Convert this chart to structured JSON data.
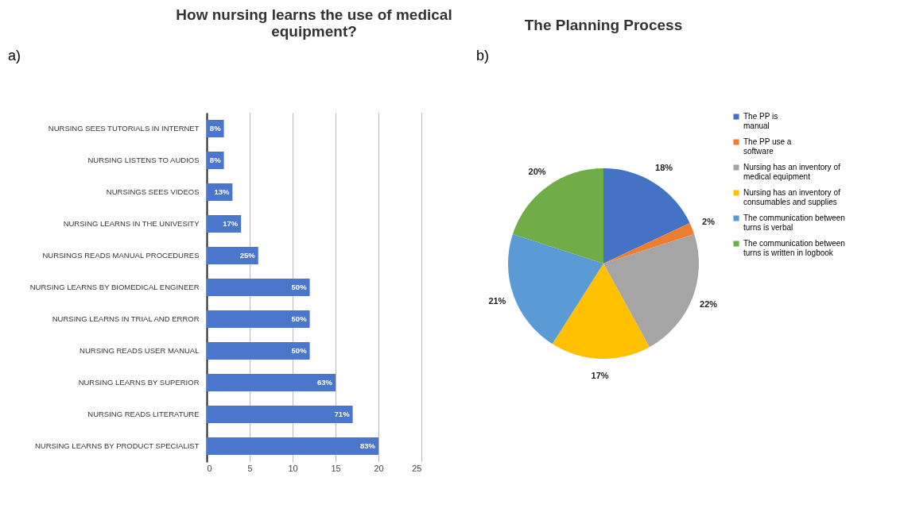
{
  "chart_data": [
    {
      "type": "bar",
      "orientation": "horizontal",
      "title": "How nursing learns the use of medical equipment?",
      "categories": [
        "NURSING SEES TUTORIALS IN INTERNET",
        "NURSING LISTENS TO AUDIOS",
        "NURSINGS SEES VIDEOS",
        "NURSING LEARNS IN THE UNIVESITY",
        "NURSINGS READS MANUAL PROCEDURES",
        "NURSING LEARNS BY BIOMEDICAL ENGINEER",
        "NURSING LEARNS IN TRIAL AND ERROR",
        "NURSING  READS USER MANUAL",
        "NURSING LEARNS BY SUPERIOR",
        "NURSING READS LITERATURE",
        "NURSING LEARNS BY PRODUCT SPECIALIST"
      ],
      "values": [
        2,
        2,
        3,
        4,
        6,
        12,
        12,
        12,
        15,
        17,
        20
      ],
      "color": "#4a76cc",
      "xlim": [
        0,
        25
      ],
      "xticks": [
        0,
        5,
        10,
        15,
        20,
        25
      ],
      "grid": "x",
      "annotations": [
        "a)",
        {
          "text": "8%",
          "x": 2,
          "y": "NURSING SEES TUTORIALS IN INTERNET"
        },
        {
          "text": "8%",
          "x": 2,
          "y": "NURSING LISTENS TO AUDIOS"
        },
        {
          "text": "13%",
          "x": 3,
          "y": "NURSINGS SEES VIDEOS"
        },
        {
          "text": "17%",
          "x": 4,
          "y": "NURSING LEARNS IN THE UNIVESITY"
        },
        {
          "text": "25%",
          "x": 6,
          "y": "NURSINGS READS MANUAL PROCEDURES"
        },
        {
          "text": "50%",
          "x": 12,
          "y": "NURSING LEARNS BY BIOMEDICAL ENGINEER"
        },
        {
          "text": "50%",
          "x": 12,
          "y": "NURSING LEARNS IN TRIAL AND ERROR"
        },
        {
          "text": "50%",
          "x": 12,
          "y": "NURSING  READS USER MANUAL"
        },
        {
          "text": "63%",
          "x": 15,
          "y": "NURSING LEARNS BY SUPERIOR"
        },
        {
          "text": "71%",
          "x": 17,
          "y": "NURSING READS LITERATURE"
        },
        {
          "text": "83%",
          "x": 20,
          "y": "NURSING LEARNS BY PRODUCT SPECIALIST"
        }
      ]
    },
    {
      "type": "pie",
      "title": "The Planning Process",
      "categories": [
        "The PP is manual",
        "The PP use a software",
        "Nursing has an inventory of medical equipment",
        "Nursing has an inventory of consumables and supplies",
        "The communication between turns is verbal",
        "The communication between turns is written in logbook"
      ],
      "values": [
        18,
        2,
        22,
        17,
        21,
        20
      ],
      "value_labels": [
        "18%",
        "2%",
        "22%",
        "17%",
        "21%",
        "20%"
      ],
      "colors": [
        "#4472c4",
        "#ed7d31",
        "#a5a5a5",
        "#ffc000",
        "#5b9bd5",
        "#70ad47"
      ],
      "legend": "right",
      "annotations": [
        "b)"
      ]
    }
  ]
}
